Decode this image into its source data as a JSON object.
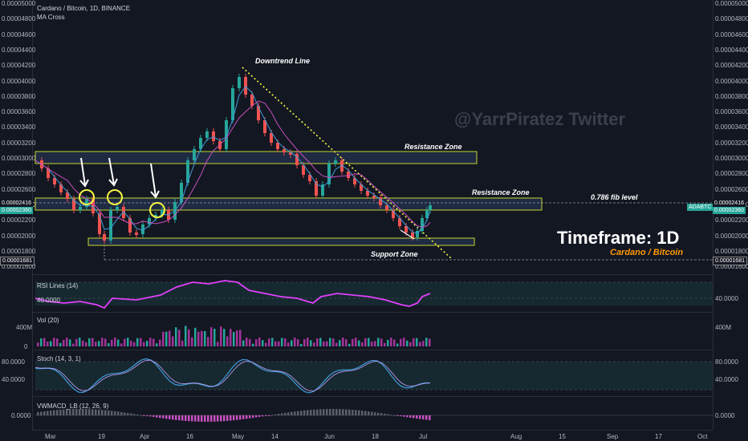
{
  "header": {
    "symbol": "Cardano / Bitcoin, 1D, BINANCE",
    "indicator": "MA Cross"
  },
  "watermark": "@YarrPiratez Twitter",
  "timeframe": {
    "label": "Timeframe: 1D",
    "pair": "Cardano / Bitcoin"
  },
  "annotations": {
    "downtrend": "Downtrend Line",
    "resistance1": "Resistance Zone",
    "resistance2": "Resistance Zone",
    "fib": "0.786 fib level",
    "support": "Support Zone"
  },
  "price_axis": {
    "labels": [
      "0.00005000",
      "0.00004800",
      "0.00004600",
      "0.00004400",
      "0.00004200",
      "0.00004000",
      "0.00003800",
      "0.00003600",
      "0.00003400",
      "0.00003200",
      "0.00003000",
      "0.00002800",
      "0.00002600",
      "0.00002400",
      "0.00002200",
      "0.00002000",
      "0.00001800",
      "0.00001600"
    ],
    "highlight_top": "0.00002416",
    "highlight_price": "0.00002360",
    "highlight_low": "0.00001681",
    "symbol_tag": "ADABTC"
  },
  "panes": {
    "rsi": {
      "title": "RSI Lines (14)",
      "value": "40.0000",
      "axis": "40.0000"
    },
    "vol": {
      "title": "Vol (20)",
      "axis_top": "400M",
      "axis_mid": "400M",
      "axis_bottom": "0"
    },
    "stoch": {
      "title": "Stoch (14, 3, 1)",
      "axis_top": "80.0000",
      "axis_mid": "40.0000"
    },
    "macd": {
      "title": "VWMACD_LB (12, 26, 9)",
      "value": "0.0000",
      "axis": "0.0000"
    }
  },
  "time_axis": [
    "Mar",
    "19",
    "Apr",
    "16",
    "May",
    "14",
    "Jun",
    "18",
    "Jul",
    "Aug",
    "15",
    "Sep",
    "17",
    "Oct"
  ],
  "colors": {
    "background": "#131722",
    "up": "#26a69a",
    "down": "#ef5350",
    "zone_border": "#c6d52f",
    "rsi": "#e040fb",
    "trend": "#f4f442",
    "highlight": "#26a69a"
  }
}
